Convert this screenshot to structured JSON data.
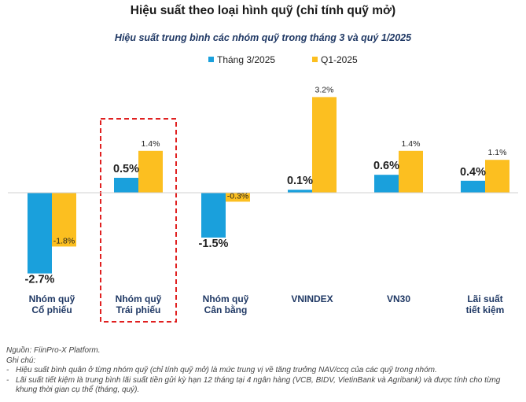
{
  "title": "Hiệu suất theo loại hình quỹ (chỉ tính quỹ mở)",
  "chart_data": {
    "type": "bar",
    "title": "Hiệu suất trung bình các nhóm quỹ trong tháng 3 và quý 1/2025",
    "categories": [
      [
        "Nhóm quỹ",
        "Cổ phiếu"
      ],
      [
        "Nhóm quỹ",
        "Trái phiếu"
      ],
      [
        "Nhóm quỹ",
        "Cân bằng"
      ],
      [
        "VNINDEX"
      ],
      [
        "VN30"
      ],
      [
        "Lãi suất",
        "tiết kiệm"
      ]
    ],
    "series": [
      {
        "name": "Tháng 3/2025",
        "color": "#1aa0dc",
        "values": [
          -2.7,
          0.5,
          -1.5,
          0.1,
          0.6,
          0.4
        ],
        "labels": [
          "-2.7%",
          "0.5%",
          "-1.5%",
          "0.1%",
          "0.6%",
          "0.4%"
        ]
      },
      {
        "name": "Q1-2025",
        "color": "#fcbf20",
        "values": [
          -1.8,
          1.4,
          -0.3,
          3.2,
          1.4,
          1.1
        ],
        "labels": [
          "-1.8%",
          "1.4%",
          "-0.3%",
          "3.2%",
          "1.4%",
          "1.1%"
        ]
      }
    ],
    "legend_position": "top-left",
    "grid": false,
    "highlight_category_index": 1,
    "highlight_color": "#e02020"
  },
  "notes": {
    "source": "Nguồn: FiinPro-X Platform.",
    "heading": "Ghi chú:",
    "items": [
      "Hiệu suất bình quân ở từng nhóm quỹ (chỉ tính quỹ mở) là mức trung vị về tăng trưởng NAV/ccq của các quỹ trong nhóm.",
      "Lãi suất tiết kiệm là trung bình lãi suất tiền gửi kỳ hạn 12 tháng tại 4 ngân hàng (VCB, BIDV, VietinBank và Agribank) và được tính cho từng khung thời gian cụ thể (tháng, quý)."
    ],
    "bullet": "-"
  }
}
